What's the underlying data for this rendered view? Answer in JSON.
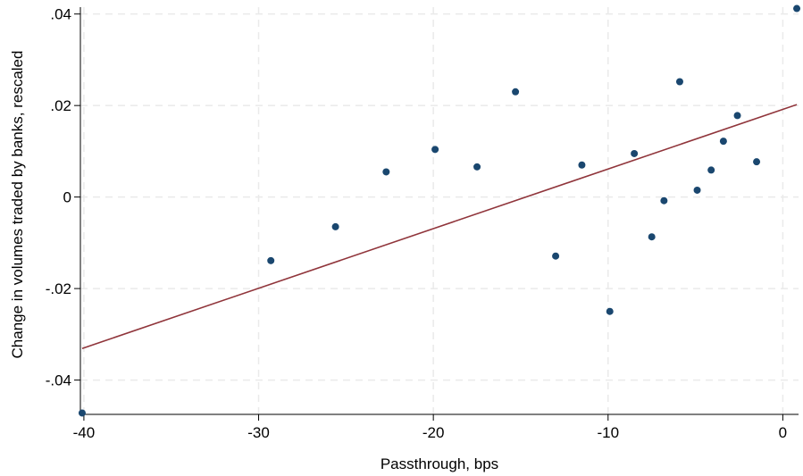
{
  "chart_data": {
    "type": "scatter",
    "title": "",
    "xlabel": "Passthrough, bps",
    "ylabel": "Change in volumes traded by banks, rescaled",
    "xlim": [
      -40.2,
      0.9
    ],
    "ylim": [
      -0.0475,
      0.0415
    ],
    "x_ticks": [
      -40,
      -30,
      -20,
      -10,
      0
    ],
    "x_tick_labels": [
      "-40",
      "-30",
      "-20",
      "-10",
      "0"
    ],
    "y_ticks": [
      -0.04,
      -0.02,
      0,
      0.02,
      0.04
    ],
    "y_tick_labels": [
      "-.04",
      "-.02",
      "0",
      ".02",
      ".04"
    ],
    "grid": true,
    "legend": "none",
    "colors": {
      "points": "#1a476f",
      "fit_line": "#90353b",
      "grid": "#eaeaea"
    },
    "points": [
      {
        "x": -40.1,
        "y": -0.0472
      },
      {
        "x": -29.3,
        "y": -0.0139
      },
      {
        "x": -25.6,
        "y": -0.0065
      },
      {
        "x": -22.7,
        "y": 0.0055
      },
      {
        "x": -19.9,
        "y": 0.0104
      },
      {
        "x": -17.5,
        "y": 0.0066
      },
      {
        "x": -15.3,
        "y": 0.023
      },
      {
        "x": -13.0,
        "y": -0.0129
      },
      {
        "x": -11.5,
        "y": 0.007
      },
      {
        "x": -9.9,
        "y": -0.025
      },
      {
        "x": -8.5,
        "y": 0.0095
      },
      {
        "x": -7.5,
        "y": -0.0087
      },
      {
        "x": -6.8,
        "y": -0.0008
      },
      {
        "x": -5.9,
        "y": 0.0252
      },
      {
        "x": -4.9,
        "y": 0.0015
      },
      {
        "x": -4.1,
        "y": 0.0059
      },
      {
        "x": -3.4,
        "y": 0.0122
      },
      {
        "x": -2.6,
        "y": 0.0178
      },
      {
        "x": -1.5,
        "y": 0.0077
      },
      {
        "x": 0.8,
        "y": 0.0412
      }
    ],
    "fit_line": {
      "x": [
        -40.1,
        0.8
      ],
      "y": [
        -0.0331,
        0.0202
      ]
    }
  }
}
